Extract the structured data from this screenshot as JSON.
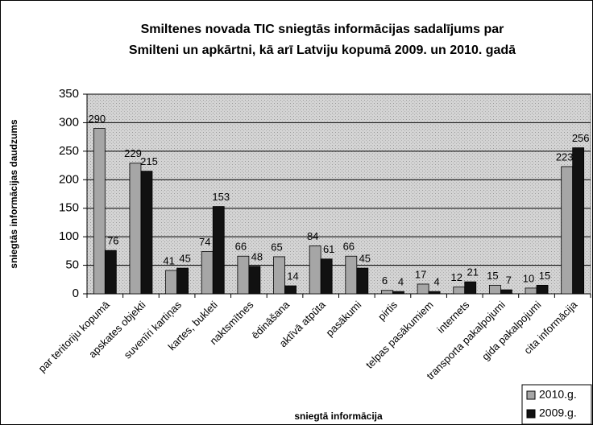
{
  "chart_data": {
    "type": "bar",
    "title": [
      "Smiltenes novada TIC sniegtās informācijas sadalījums par",
      "Smilteni un apkārtni, kā arī Latviju kopumā 2009. un 2010. gadā"
    ],
    "x_label": "sniegtā informācija",
    "y_label": "sniegtās informācijas daudzums",
    "categories": [
      "par teritoriju kopumā",
      "apskates objekti",
      "suvenīri kartiņas",
      "kartes, bukleti",
      "naktsmītnes",
      "ēdināšana",
      "aktīvā atpūta",
      "pasākumi",
      "pirtis",
      "telpas pasākumiem",
      "internets",
      "transporta pakalpojumi",
      "gida pakalpojumi",
      "cita informācija"
    ],
    "series": [
      {
        "name": "2010.g.",
        "color": "#a6a6a6",
        "values": [
          290,
          229,
          41,
          74,
          66,
          65,
          84,
          66,
          6,
          17,
          12,
          15,
          10,
          223
        ]
      },
      {
        "name": "2009.g.",
        "color": "#111111",
        "values": [
          76,
          215,
          45,
          153,
          48,
          14,
          61,
          45,
          4,
          4,
          21,
          7,
          15,
          256
        ]
      }
    ],
    "ylim": [
      0,
      350
    ],
    "yticks": [
      0,
      50,
      100,
      150,
      200,
      250,
      300,
      350
    ],
    "grid": true,
    "legend": "bottom-right"
  }
}
